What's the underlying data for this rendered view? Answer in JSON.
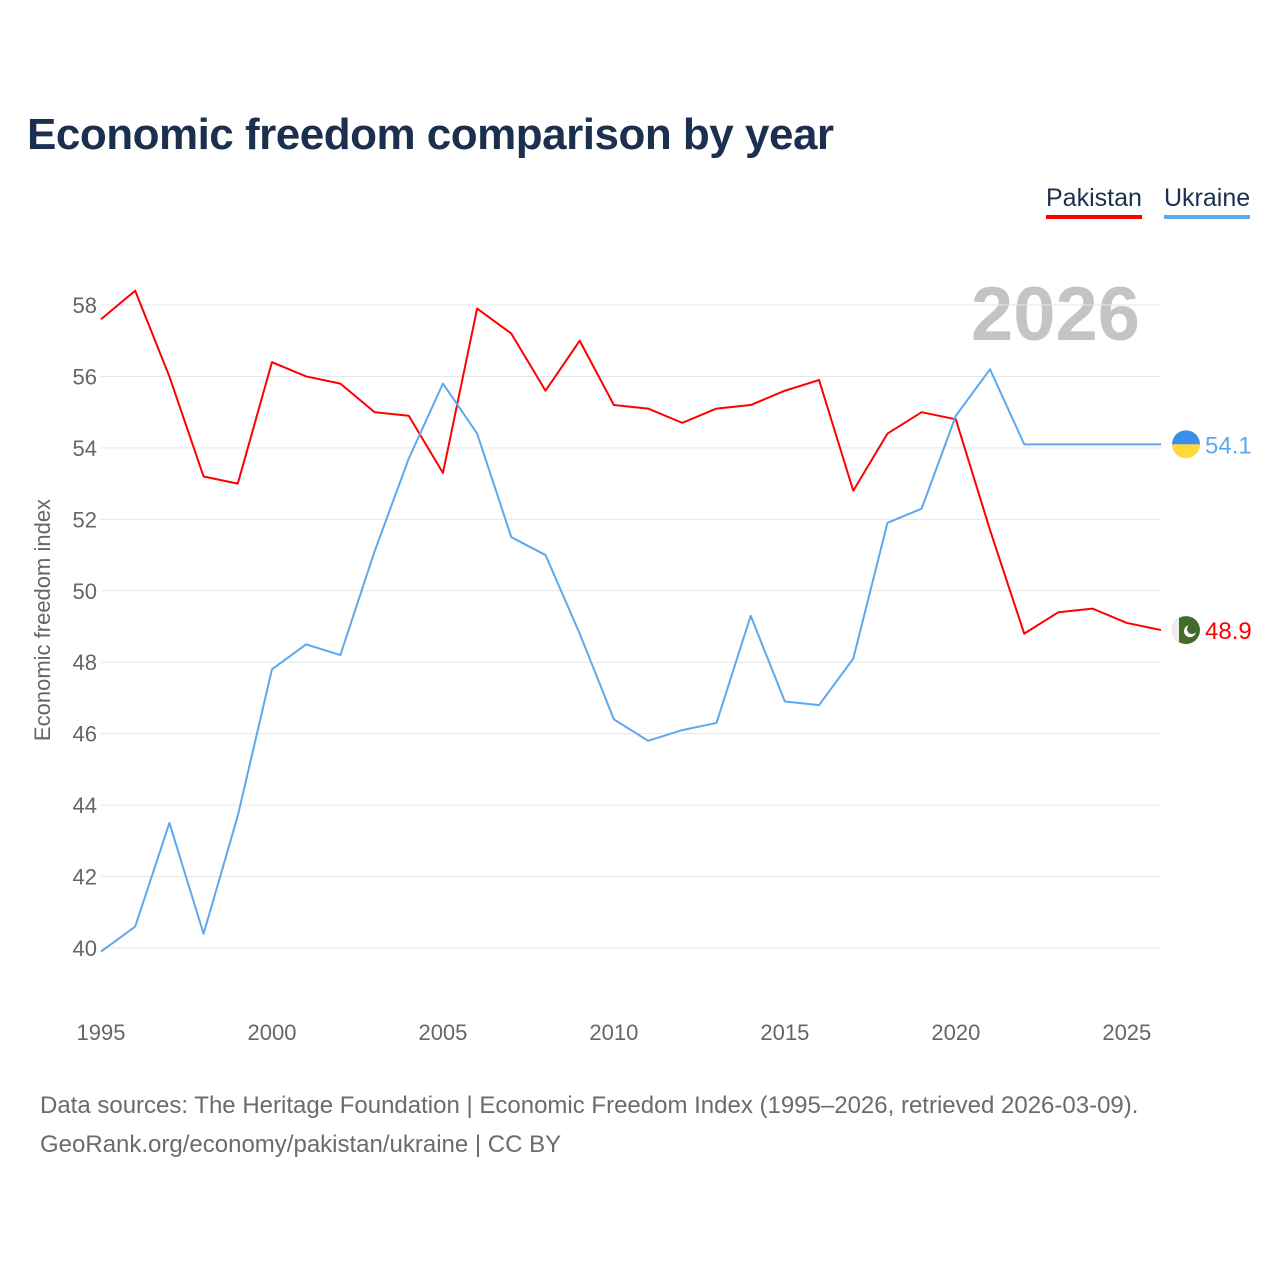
{
  "chart_data": {
    "type": "line",
    "title": "Economic freedom comparison by year",
    "xlabel": "",
    "ylabel": "Economic freedom index",
    "xlim": [
      1995,
      2026
    ],
    "ylim": [
      40,
      58
    ],
    "yticks": [
      40,
      42,
      44,
      46,
      48,
      50,
      52,
      54,
      56,
      58
    ],
    "xticks": [
      1995,
      2000,
      2005,
      2010,
      2015,
      2020,
      2025
    ],
    "grid": true,
    "legend_position": "top-right",
    "year_watermark": "2026",
    "x": [
      1995,
      1996,
      1997,
      1998,
      1999,
      2000,
      2001,
      2002,
      2003,
      2004,
      2005,
      2006,
      2007,
      2008,
      2009,
      2010,
      2011,
      2012,
      2013,
      2014,
      2015,
      2016,
      2017,
      2018,
      2019,
      2020,
      2021,
      2022,
      2023,
      2024,
      2025,
      2026
    ],
    "series": [
      {
        "name": "Pakistan",
        "color": "#ff0000",
        "end_label": "48.9",
        "values": [
          57.6,
          58.4,
          56.0,
          53.2,
          53.0,
          56.4,
          56.0,
          55.8,
          55.0,
          54.9,
          53.3,
          57.9,
          57.2,
          55.6,
          57.0,
          55.2,
          55.1,
          54.7,
          55.1,
          55.2,
          55.6,
          55.9,
          52.8,
          54.4,
          55.0,
          54.8,
          51.7,
          48.8,
          49.4,
          49.5,
          49.1,
          48.9
        ]
      },
      {
        "name": "Ukraine",
        "color": "#5ea8ee",
        "end_label": "54.1",
        "values": [
          39.9,
          40.6,
          43.5,
          40.4,
          43.7,
          47.8,
          48.5,
          48.2,
          51.1,
          53.7,
          55.8,
          54.4,
          51.5,
          51.0,
          48.8,
          46.4,
          45.8,
          46.1,
          46.3,
          49.3,
          46.9,
          46.8,
          48.1,
          51.9,
          52.3,
          54.9,
          56.2,
          54.1,
          54.1,
          54.1,
          54.1,
          54.1
        ]
      }
    ]
  },
  "footer": {
    "line1": "Data sources: The Heritage Foundation | Economic Freedom Index (1995–2026, retrieved 2026-03-09).",
    "line2": "GeoRank.org/economy/pakistan/ukraine | CC BY"
  }
}
